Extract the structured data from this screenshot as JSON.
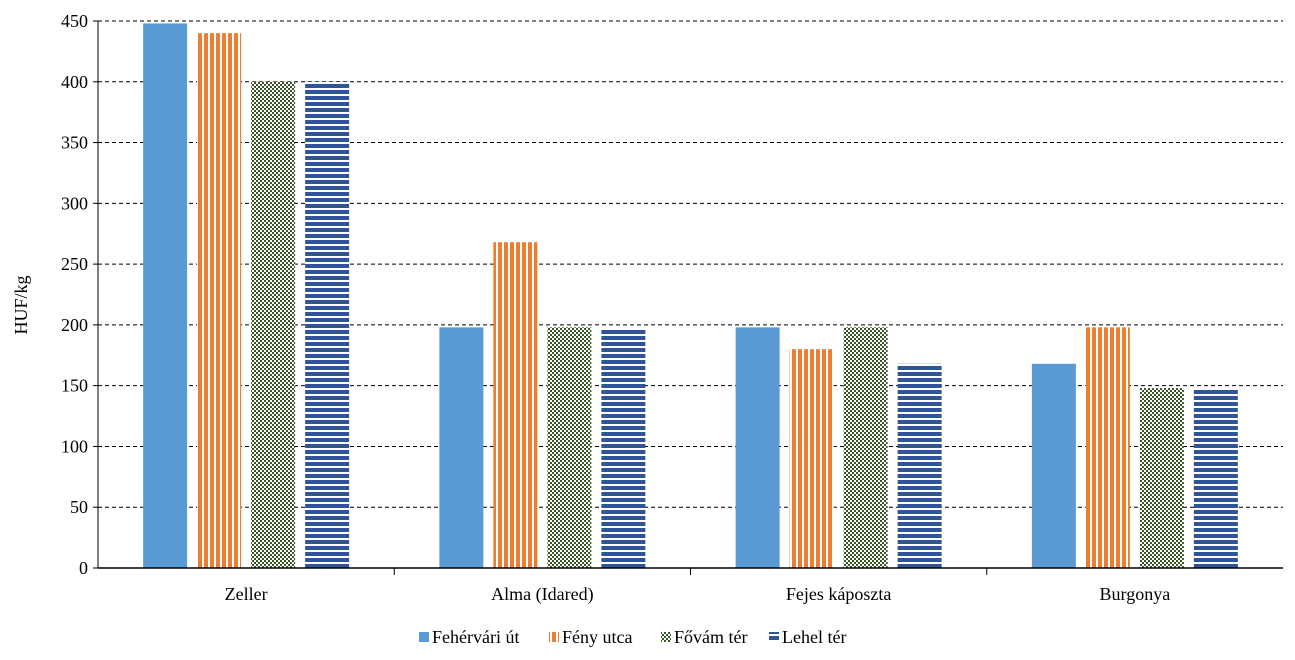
{
  "chart_data": {
    "type": "bar",
    "title": "",
    "xlabel": "",
    "ylabel": "HUF/kg",
    "ylim": [
      0,
      450
    ],
    "yticks": [
      0,
      50,
      100,
      150,
      200,
      250,
      300,
      350,
      400,
      450
    ],
    "grid": true,
    "legend_position": "bottom",
    "categories": [
      "Zeller",
      "Alma (Idared)",
      "Fejes káposzta",
      "Burgonya"
    ],
    "series": [
      {
        "name": "Fehérvári út",
        "values": [
          448,
          198,
          198,
          168
        ],
        "color": "#5b9bd5",
        "pattern": "solid"
      },
      {
        "name": "Fény utca",
        "values": [
          440,
          268,
          180,
          198
        ],
        "color": "#ed7d31",
        "pattern": "vertical-stripes"
      },
      {
        "name": "Fővám tér",
        "values": [
          400,
          198,
          198,
          148
        ],
        "color": "#375623",
        "pattern": "checker"
      },
      {
        "name": "Lehel tér",
        "values": [
          400,
          197,
          168,
          148
        ],
        "color": "#2f5597",
        "pattern": "horizontal-stripes"
      }
    ]
  }
}
